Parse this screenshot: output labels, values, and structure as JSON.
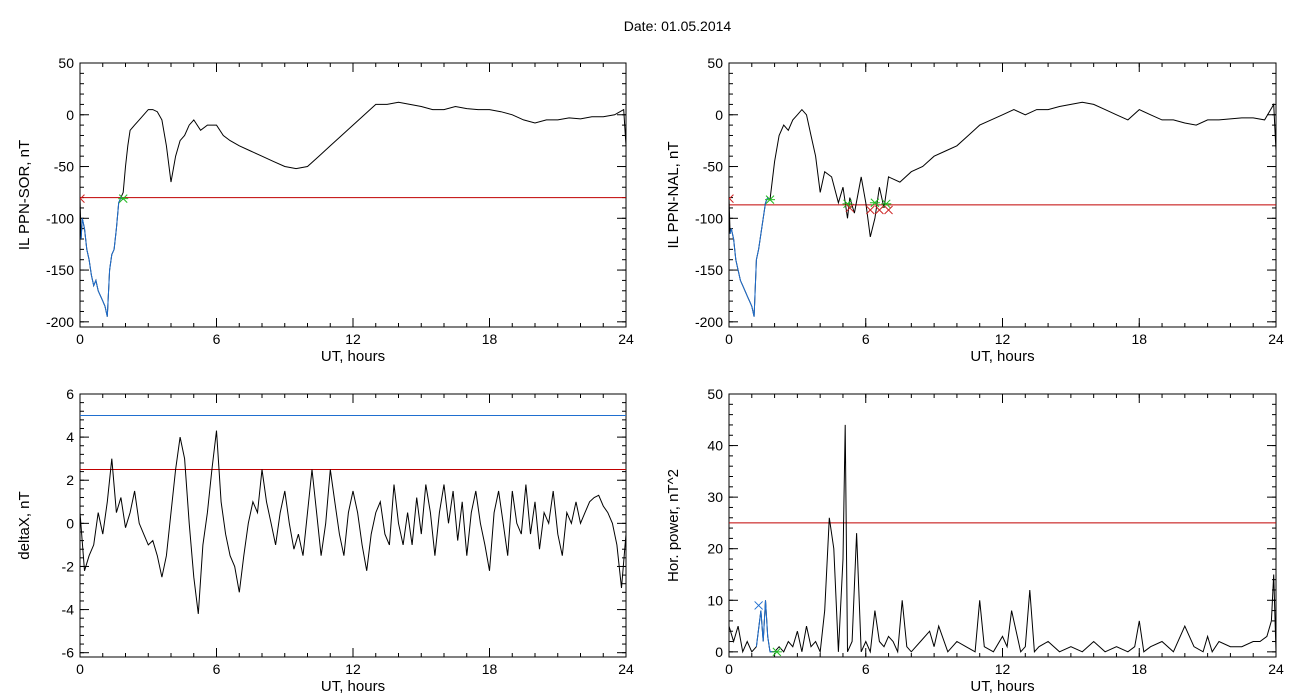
{
  "page_title": "Date:  01.05.2014",
  "colors": {
    "trace": "#000000",
    "threshold_red": "#c00000",
    "threshold_blue": "#1f6fd0",
    "marker_green": "#22bb22",
    "marker_red": "#cc2222"
  },
  "chart_data": [
    {
      "type": "line",
      "xlabel": "UT, hours",
      "ylabel": "IL PPN-SOR, nT",
      "xlim": [
        0,
        24
      ],
      "ylim": [
        -205,
        50
      ],
      "xticks": [
        0,
        6,
        12,
        18,
        24
      ],
      "yticks": [
        50,
        0,
        -50,
        -100,
        -150,
        -200
      ],
      "series": [
        {
          "color": "#000000",
          "x": [
            0,
            0.05,
            0.1,
            0.2,
            0.3,
            0.4,
            0.5,
            0.6,
            0.7,
            0.8,
            0.9,
            1.0,
            1.1,
            1.2,
            1.3,
            1.4,
            1.5,
            1.6,
            1.7,
            1.8,
            1.9,
            2.0,
            2.1,
            2.2,
            2.4,
            2.6,
            2.8,
            3.0,
            3.2,
            3.4,
            3.6,
            3.8,
            4.0,
            4.2,
            4.4,
            4.6,
            4.8,
            5.0,
            5.3,
            5.6,
            6.0,
            6.3,
            6.6,
            7.0,
            7.5,
            8.0,
            8.5,
            9.0,
            9.5,
            10.0,
            10.5,
            11.0,
            11.5,
            12.0,
            12.5,
            13.0,
            13.5,
            14.0,
            14.5,
            15.0,
            15.5,
            16.0,
            16.5,
            17.0,
            17.5,
            18.0,
            18.5,
            19.0,
            19.5,
            20.0,
            20.5,
            21.0,
            21.5,
            22.0,
            22.5,
            23.0,
            23.5,
            23.9,
            24.0
          ],
          "y": [
            -80,
            -120,
            -100,
            -110,
            -130,
            -140,
            -155,
            -165,
            -160,
            -170,
            -175,
            -180,
            -185,
            -195,
            -150,
            -135,
            -130,
            -110,
            -85,
            -80,
            -75,
            -50,
            -30,
            -15,
            -10,
            -5,
            0,
            5,
            5,
            3,
            -5,
            -30,
            -65,
            -40,
            -25,
            -20,
            -10,
            -5,
            -15,
            -10,
            -10,
            -20,
            -25,
            -30,
            -35,
            -40,
            -45,
            -50,
            -52,
            -50,
            -40,
            -30,
            -20,
            -10,
            0,
            10,
            10,
            12,
            10,
            8,
            5,
            5,
            8,
            6,
            5,
            5,
            3,
            0,
            -5,
            -8,
            -5,
            -5,
            -3,
            -4,
            -2,
            -2,
            0,
            5,
            -30
          ]
        },
        {
          "color": "#1f6fd0",
          "x": [
            0.05,
            0.1,
            0.2,
            0.3,
            0.4,
            0.5,
            0.6,
            0.7,
            0.8,
            0.9,
            1.0,
            1.1,
            1.2,
            1.3,
            1.4,
            1.5,
            1.6,
            1.7,
            1.8,
            1.9
          ],
          "y": [
            -120,
            -100,
            -110,
            -130,
            -140,
            -155,
            -165,
            -160,
            -170,
            -175,
            -180,
            -185,
            -195,
            -150,
            -135,
            -130,
            -110,
            -85,
            -80,
            -82
          ]
        }
      ],
      "thresholds": [
        {
          "y": -80,
          "color": "#c00000"
        }
      ],
      "markers": [
        {
          "x": 1.9,
          "y": -81,
          "symbol": "asterisk",
          "color": "#22bb22"
        },
        {
          "x": 0.02,
          "y": -81,
          "symbol": "x",
          "color": "#cc2222"
        }
      ]
    },
    {
      "type": "line",
      "xlabel": "UT, hours",
      "ylabel": "IL PPN-NAL, nT",
      "xlim": [
        0,
        24
      ],
      "ylim": [
        -205,
        50
      ],
      "xticks": [
        0,
        6,
        12,
        18,
        24
      ],
      "yticks": [
        50,
        0,
        -50,
        -100,
        -150,
        -200
      ],
      "series": [
        {
          "color": "#000000",
          "x": [
            0,
            0.05,
            0.1,
            0.2,
            0.3,
            0.4,
            0.5,
            0.6,
            0.7,
            0.8,
            0.9,
            1.0,
            1.1,
            1.2,
            1.3,
            1.4,
            1.5,
            1.6,
            1.7,
            1.8,
            2.0,
            2.2,
            2.4,
            2.6,
            2.8,
            3.0,
            3.2,
            3.4,
            3.6,
            3.8,
            4.0,
            4.2,
            4.5,
            4.8,
            5.0,
            5.2,
            5.3,
            5.5,
            5.8,
            6.0,
            6.2,
            6.4,
            6.6,
            6.8,
            7.0,
            7.5,
            8.0,
            8.5,
            9.0,
            9.5,
            10.0,
            10.5,
            11.0,
            11.5,
            12.0,
            12.5,
            13.0,
            13.5,
            14.0,
            14.5,
            15.0,
            15.5,
            16.0,
            16.5,
            17.0,
            17.5,
            18.0,
            18.5,
            19.0,
            19.5,
            20.0,
            20.5,
            21.0,
            21.5,
            22.0,
            22.5,
            23.0,
            23.5,
            23.9,
            24.0
          ],
          "y": [
            -80,
            -115,
            -110,
            -120,
            -140,
            -150,
            -160,
            -165,
            -170,
            -175,
            -180,
            -185,
            -195,
            -140,
            -130,
            -115,
            -100,
            -85,
            -80,
            -82,
            -45,
            -20,
            -10,
            -15,
            -5,
            0,
            5,
            0,
            -20,
            -40,
            -75,
            -55,
            -60,
            -85,
            -70,
            -100,
            -80,
            -95,
            -60,
            -85,
            -118,
            -100,
            -70,
            -90,
            -60,
            -65,
            -55,
            -50,
            -40,
            -35,
            -30,
            -20,
            -10,
            -5,
            0,
            5,
            0,
            5,
            5,
            8,
            10,
            12,
            10,
            5,
            0,
            -5,
            5,
            0,
            -5,
            -5,
            -8,
            -10,
            -5,
            -5,
            -4,
            -3,
            -3,
            -5,
            10,
            -35
          ]
        },
        {
          "color": "#1f6fd0",
          "x": [
            0.05,
            0.1,
            0.2,
            0.3,
            0.4,
            0.5,
            0.6,
            0.7,
            0.8,
            0.9,
            1.0,
            1.1,
            1.2,
            1.3,
            1.4,
            1.5,
            1.6,
            1.7,
            1.8
          ],
          "y": [
            -115,
            -110,
            -120,
            -140,
            -150,
            -160,
            -165,
            -170,
            -175,
            -180,
            -185,
            -195,
            -140,
            -130,
            -115,
            -100,
            -85,
            -80,
            -82
          ]
        }
      ],
      "thresholds": [
        {
          "y": -87,
          "color": "#c00000"
        }
      ],
      "markers": [
        {
          "x": 1.8,
          "y": -82,
          "symbol": "asterisk",
          "color": "#22bb22"
        },
        {
          "x": 5.2,
          "y": -86,
          "symbol": "asterisk",
          "color": "#22bb22"
        },
        {
          "x": 6.4,
          "y": -85,
          "symbol": "asterisk",
          "color": "#22bb22"
        },
        {
          "x": 6.9,
          "y": -86,
          "symbol": "asterisk",
          "color": "#22bb22"
        },
        {
          "x": 0.02,
          "y": -81,
          "symbol": "x",
          "color": "#cc2222"
        },
        {
          "x": 5.3,
          "y": -90,
          "symbol": "x",
          "color": "#cc2222"
        },
        {
          "x": 6.2,
          "y": -92,
          "symbol": "x",
          "color": "#cc2222"
        },
        {
          "x": 6.6,
          "y": -92,
          "symbol": "x",
          "color": "#cc2222"
        },
        {
          "x": 7.0,
          "y": -92,
          "symbol": "x",
          "color": "#cc2222"
        }
      ]
    },
    {
      "type": "line",
      "xlabel": "UT, hours",
      "ylabel": "deltaX, nT",
      "xlim": [
        0,
        24
      ],
      "ylim": [
        -6.2,
        6
      ],
      "xticks": [
        0,
        6,
        12,
        18,
        24
      ],
      "yticks": [
        6,
        4,
        2,
        0,
        -2,
        -4,
        -6
      ],
      "series": [
        {
          "color": "#000000",
          "x": [
            0,
            0.2,
            0.4,
            0.6,
            0.8,
            1.0,
            1.2,
            1.4,
            1.6,
            1.8,
            2.0,
            2.2,
            2.4,
            2.6,
            2.8,
            3.0,
            3.2,
            3.4,
            3.6,
            3.8,
            4.0,
            4.2,
            4.4,
            4.6,
            4.8,
            5.0,
            5.2,
            5.4,
            5.6,
            5.8,
            6.0,
            6.2,
            6.4,
            6.6,
            6.8,
            7.0,
            7.2,
            7.4,
            7.6,
            7.8,
            8.0,
            8.2,
            8.4,
            8.6,
            8.8,
            9.0,
            9.2,
            9.4,
            9.6,
            9.8,
            10.0,
            10.2,
            10.4,
            10.6,
            10.8,
            11.0,
            11.2,
            11.4,
            11.6,
            11.8,
            12.0,
            12.2,
            12.4,
            12.6,
            12.8,
            13.0,
            13.2,
            13.4,
            13.6,
            13.8,
            14.0,
            14.2,
            14.4,
            14.6,
            14.8,
            15.0,
            15.2,
            15.4,
            15.6,
            15.8,
            16.0,
            16.2,
            16.4,
            16.6,
            16.8,
            17.0,
            17.2,
            17.4,
            17.6,
            17.8,
            18.0,
            18.2,
            18.4,
            18.6,
            18.8,
            19.0,
            19.2,
            19.4,
            19.6,
            19.8,
            20.0,
            20.2,
            20.4,
            20.6,
            20.8,
            21.0,
            21.2,
            21.4,
            21.6,
            21.8,
            22.0,
            22.2,
            22.4,
            22.6,
            22.8,
            23.0,
            23.2,
            23.4,
            23.6,
            23.8,
            24.0
          ],
          "y": [
            0.5,
            -2.2,
            -1.5,
            -1.0,
            0.5,
            -0.5,
            1.0,
            3.0,
            0.5,
            1.2,
            -0.2,
            0.5,
            1.5,
            0.0,
            -0.5,
            -1.0,
            -0.8,
            -1.5,
            -2.5,
            -1.5,
            0.5,
            2.5,
            4.0,
            3.0,
            0.0,
            -2.5,
            -4.2,
            -1.0,
            0.5,
            2.5,
            4.3,
            1.0,
            -0.5,
            -1.5,
            -2.0,
            -3.2,
            -1.5,
            0.0,
            1.0,
            0.5,
            2.5,
            1.0,
            0.0,
            -1.0,
            0.5,
            1.5,
            0.0,
            -1.2,
            -0.5,
            -1.5,
            0.5,
            2.5,
            0.5,
            -1.5,
            0.0,
            2.5,
            1.0,
            -0.5,
            -1.5,
            0.5,
            1.5,
            0.5,
            -1.0,
            -2.2,
            -0.5,
            0.5,
            1.0,
            -0.5,
            -1.0,
            1.8,
            0.0,
            -1.0,
            0.5,
            -1.0,
            1.2,
            -0.5,
            1.8,
            0.5,
            -1.5,
            0.5,
            1.8,
            0.0,
            1.5,
            -0.8,
            1.0,
            -1.5,
            0.5,
            1.5,
            0.0,
            -1.0,
            -2.2,
            0.5,
            1.5,
            0.0,
            -1.5,
            1.5,
            0.0,
            -0.5,
            1.8,
            -0.5,
            1.0,
            -1.2,
            0.5,
            0.0,
            1.5,
            -0.5,
            -1.5,
            0.5,
            0.0,
            1.0,
            0.0,
            0.5,
            1.0,
            1.2,
            1.3,
            0.8,
            0.5,
            0.0,
            -1.0,
            -3.0,
            -0.5
          ]
        }
      ],
      "thresholds": [
        {
          "y": 5.0,
          "color": "#1f6fd0"
        },
        {
          "y": 2.5,
          "color": "#c00000"
        }
      ],
      "markers": []
    },
    {
      "type": "line",
      "xlabel": "UT, hours",
      "ylabel": "Hor. power, nT^2",
      "xlim": [
        0,
        24
      ],
      "ylim": [
        -1,
        50
      ],
      "xticks": [
        0,
        6,
        12,
        18,
        24
      ],
      "yticks": [
        50,
        40,
        30,
        20,
        10,
        0
      ],
      "series": [
        {
          "color": "#000000",
          "x": [
            0,
            0.2,
            0.4,
            0.6,
            0.8,
            1.0,
            1.2,
            1.4,
            1.5,
            1.6,
            1.7,
            1.8,
            2.0,
            2.2,
            2.4,
            2.6,
            2.8,
            3.0,
            3.2,
            3.4,
            3.6,
            3.8,
            4.0,
            4.2,
            4.4,
            4.6,
            4.8,
            5.0,
            5.1,
            5.2,
            5.4,
            5.6,
            5.8,
            6.0,
            6.2,
            6.4,
            6.6,
            6.8,
            7.0,
            7.2,
            7.4,
            7.6,
            7.8,
            8.0,
            8.4,
            8.8,
            9.0,
            9.2,
            9.6,
            10.0,
            10.4,
            10.8,
            11.0,
            11.2,
            11.6,
            12.0,
            12.2,
            12.4,
            12.8,
            13.0,
            13.2,
            13.4,
            13.6,
            14.0,
            14.5,
            15.0,
            15.5,
            16.0,
            16.5,
            17.0,
            17.5,
            17.8,
            18.0,
            18.2,
            18.5,
            19.0,
            19.5,
            20.0,
            20.4,
            20.8,
            21.0,
            21.2,
            21.5,
            22.0,
            22.5,
            23.0,
            23.3,
            23.6,
            23.8,
            23.9,
            24.0
          ],
          "y": [
            5,
            2,
            5,
            0,
            2,
            0,
            1,
            8,
            2,
            10,
            3,
            0,
            0,
            1,
            0,
            2,
            1,
            4,
            0,
            5,
            1,
            2,
            0,
            8,
            26,
            20,
            0,
            18,
            44,
            0,
            2,
            23,
            0,
            2,
            0,
            8,
            2,
            1,
            3,
            2,
            0,
            10,
            1,
            0,
            2,
            4,
            1,
            5,
            0,
            2,
            1,
            0,
            10,
            1,
            0,
            3,
            1,
            8,
            0,
            1,
            12,
            0,
            1,
            2,
            0,
            1,
            0,
            2,
            0,
            1,
            0,
            1,
            6,
            0,
            1,
            2,
            0,
            5,
            1,
            0,
            3,
            0,
            2,
            1,
            1,
            2,
            2,
            3,
            6,
            15,
            0
          ]
        },
        {
          "color": "#1f6fd0",
          "x": [
            1.2,
            1.4,
            1.5,
            1.6,
            1.7,
            1.8,
            2.0,
            2.1
          ],
          "y": [
            1,
            8,
            2,
            10,
            3,
            0,
            0,
            0
          ]
        }
      ],
      "thresholds": [
        {
          "y": 25,
          "color": "#c00000"
        }
      ],
      "markers": [
        {
          "x": 1.3,
          "y": 9,
          "symbol": "x",
          "color": "#1f6fd0"
        },
        {
          "x": 2.1,
          "y": 0,
          "symbol": "asterisk",
          "color": "#22bb22"
        }
      ]
    }
  ]
}
